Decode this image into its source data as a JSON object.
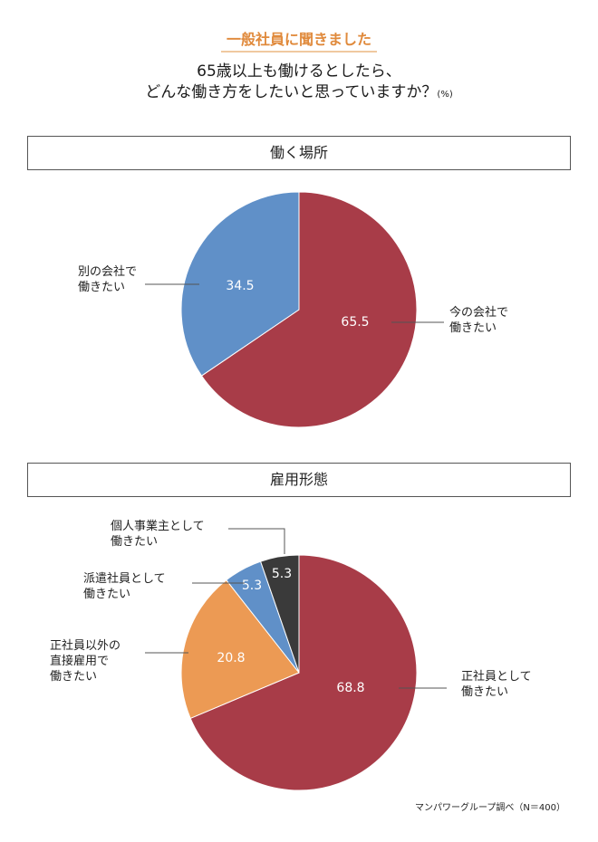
{
  "header": {
    "tag": "一般社員に聞きました",
    "line1": "65歳以上も働けるとしたら、",
    "line2": "どんな働き方をしたいと思っていますか？",
    "unit": "(%)"
  },
  "source": "マンパワーグループ調べ（N＝400）",
  "chart_data": [
    {
      "type": "pie",
      "title": "働く場所",
      "slices": [
        {
          "label": [
            "今の会社で",
            "働きたい"
          ],
          "value": 65.5,
          "value_text": "65.5",
          "color": "#a83c48"
        },
        {
          "label": [
            "別の会社で",
            "働きたい"
          ],
          "value": 34.5,
          "value_text": "34.5",
          "color": "#6090c8"
        }
      ]
    },
    {
      "type": "pie",
      "title": "雇用形態",
      "slices": [
        {
          "label": [
            "正社員として",
            "働きたい"
          ],
          "value": 68.8,
          "value_text": "68.8",
          "color": "#a83c48"
        },
        {
          "label": [
            "正社員以外の",
            "直接雇用で",
            "働きたい"
          ],
          "value": 20.8,
          "value_text": "20.8",
          "color": "#ec9a54"
        },
        {
          "label": [
            "派遣社員として",
            "働きたい"
          ],
          "value": 5.3,
          "value_text": "5.3",
          "color": "#6090c8"
        },
        {
          "label": [
            "個人事業主として",
            "働きたい"
          ],
          "value": 5.3,
          "value_text": "5.3",
          "color": "#3a3a3a"
        }
      ]
    }
  ]
}
